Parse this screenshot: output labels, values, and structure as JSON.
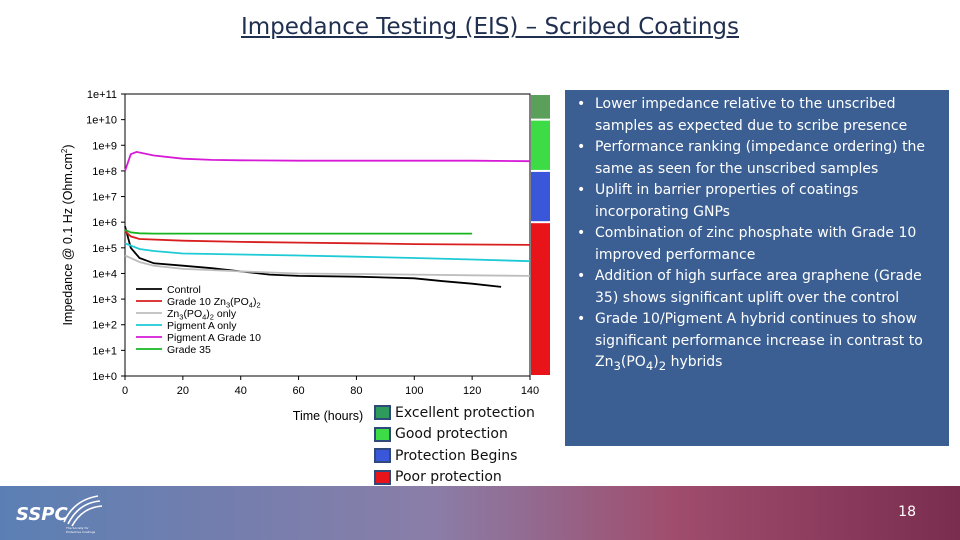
{
  "slide": {
    "title": "Impedance Testing (EIS) – Scribed Coatings",
    "page_number": "18",
    "logo": {
      "text": "SSPC",
      "tagline_lines": [
        "The Society for",
        "Protective Coatings"
      ]
    }
  },
  "protection_key": [
    {
      "label": "Excellent protection",
      "color": "#2e9a5b"
    },
    {
      "label": "Good protection",
      "color": "#3ddc46"
    },
    {
      "label": "Protection Begins",
      "color": "#3b57d9"
    },
    {
      "label": "Poor protection",
      "color": "#e8141a"
    }
  ],
  "bullets": [
    {
      "text": "Lower impedance relative to the unscribed samples as expected due to scribe presence"
    },
    {
      "text": "Performance ranking (impedance ordering) the same as seen for the unscribed samples"
    },
    {
      "text": "Uplift in barrier properties of coatings incorporating GNPs"
    },
    {
      "text": "Combination of zinc phosphate with Grade 10 improved performance"
    },
    {
      "text": "Addition of high surface area graphene (Grade 35) shows significant uplift over the control"
    },
    {
      "text": "Grade 10/Pigment A hybrid continues to show significant performance increase in contrast to ",
      "formula": [
        "Zn",
        "3",
        "(PO",
        "4",
        ")",
        "2"
      ],
      "after": " hybrids"
    }
  ],
  "bullet_marker": "•",
  "chart_data": {
    "type": "line",
    "title": "",
    "xlabel": "Time (hours)",
    "ylabel": "Impedance @ 0.1 Hz (Ohm.cm2)",
    "xlim": [
      0,
      140
    ],
    "ylim_log10": [
      0,
      11
    ],
    "x_ticks": [
      "0",
      "20",
      "40",
      "60",
      "80",
      "100",
      "120",
      "140"
    ],
    "y_ticks": [
      "1e+0",
      "1e+1",
      "1e+2",
      "1e+3",
      "1e+4",
      "1e+5",
      "1e+6",
      "1e+7",
      "1e+8",
      "1e+9",
      "1e+10",
      "1e+11"
    ],
    "y_scale": "log",
    "grid": false,
    "legend_position": "bottom-left",
    "protection_bands": [
      {
        "label": "Poor protection",
        "from": 1.0,
        "to": 1000000.0,
        "color": "#e8141a"
      },
      {
        "label": "Protection Begins",
        "from": 1000000.0,
        "to": 100000000.0,
        "color": "#3b57d9"
      },
      {
        "label": "Good protection",
        "from": 100000000.0,
        "to": 10000000000.0,
        "color": "#3ddc46"
      },
      {
        "label": "Excellent protection",
        "from": 10000000000.0,
        "to": 100000000000.0,
        "color": "#5aa05a"
      }
    ],
    "series": [
      {
        "name": "Control",
        "legend": [
          "Control"
        ],
        "color": "#000000",
        "x": [
          0,
          2,
          5,
          10,
          20,
          30,
          40,
          50,
          60,
          80,
          100,
          110,
          120,
          130
        ],
        "y": [
          700000.0,
          100000.0,
          40000.0,
          25000.0,
          20000.0,
          16000.0,
          12000.0,
          9000.0,
          8000.0,
          7500.0,
          6500.0,
          5000.0,
          4000.0,
          3000.0
        ]
      },
      {
        "name": "Grade 10 Zn3(PO4)2",
        "legend": [
          "Grade 10 Zn",
          "3",
          "(PO",
          "4",
          ")",
          "2"
        ],
        "color": "#d81e1e",
        "x": [
          0,
          2,
          5,
          20,
          40,
          60,
          80,
          100,
          120,
          140
        ],
        "y": [
          450000.0,
          280000.0,
          220000.0,
          190000.0,
          170000.0,
          160000.0,
          150000.0,
          140000.0,
          135000.0,
          130000.0
        ]
      },
      {
        "name": "Zn3(PO4)2 only",
        "legend": [
          "Zn",
          "3",
          "(PO",
          "4",
          ")",
          "2",
          " only"
        ],
        "color": "#bdbdbd",
        "x": [
          0,
          5,
          10,
          20,
          40,
          60,
          80,
          100,
          120,
          140
        ],
        "y": [
          50000.0,
          28000.0,
          20000.0,
          15000.0,
          12000.0,
          10000.0,
          9500.0,
          9000.0,
          8500.0,
          8000.0
        ]
      },
      {
        "name": "Pigment A only",
        "legend": [
          "Pigment A only"
        ],
        "color": "#1ecad6",
        "x": [
          0,
          5,
          10,
          20,
          40,
          60,
          80,
          100,
          120,
          140
        ],
        "y": [
          150000.0,
          90000.0,
          75000.0,
          60000.0,
          55000.0,
          50000.0,
          45000.0,
          40000.0,
          35000.0,
          30000.0
        ]
      },
      {
        "name": "Pigment A Grade 10",
        "legend": [
          "Pigment A Grade 10"
        ],
        "color": "#d61ad6",
        "x": [
          0,
          2,
          4,
          10,
          20,
          30,
          40,
          60,
          80,
          100,
          120,
          140
        ],
        "y": [
          100000000.0,
          450000000.0,
          550000000.0,
          400000000.0,
          300000000.0,
          270000000.0,
          260000000.0,
          250000000.0,
          250000000.0,
          250000000.0,
          250000000.0,
          240000000.0
        ]
      },
      {
        "name": "Grade 35",
        "legend": [
          "Grade 35"
        ],
        "color": "#16b61f",
        "x": [
          0,
          2,
          5,
          10,
          20,
          40,
          60,
          80,
          100,
          120
        ],
        "y": [
          500000.0,
          400000.0,
          370000.0,
          360000.0,
          360000.0,
          360000.0,
          360000.0,
          360000.0,
          360000.0,
          360000.0
        ]
      }
    ]
  }
}
